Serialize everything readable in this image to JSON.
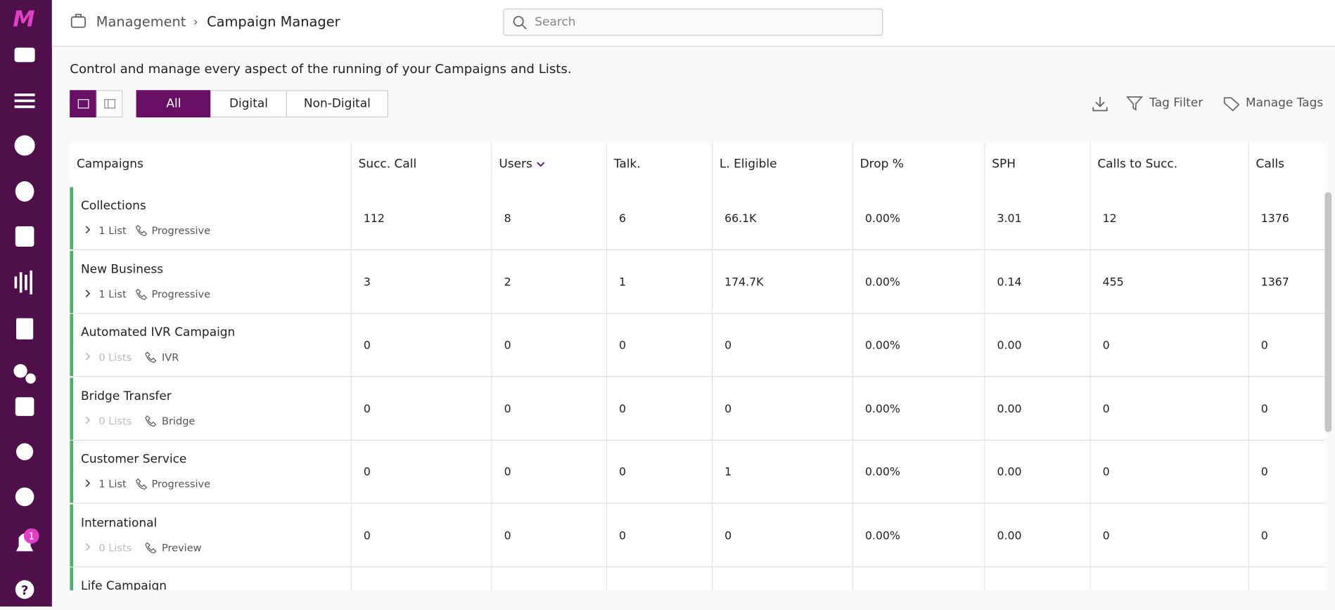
{
  "header": {
    "breadcrumb": [
      "Management",
      "Campaign Manager"
    ],
    "search_placeholder": "Search"
  },
  "sidebar": {
    "notification_count": "1"
  },
  "description": "Control and manage every aspect of the running of your Campaigns and Lists.",
  "tabs": [
    "All",
    "Digital",
    "Non-Digital"
  ],
  "actions": [
    "Tag Filter",
    "Manage Tags"
  ],
  "table": {
    "columns": [
      "Campaigns",
      "Succ. Call",
      "Users",
      "Talk.",
      "L. Eligible",
      "Drop %",
      "SPH",
      "Calls to Succ.",
      "Calls"
    ],
    "rows": [
      {
        "name": "Collections",
        "lists": "1 List",
        "mode": "Progressive",
        "cells": [
          "112",
          "8",
          "6",
          "66.1K",
          "0.00%",
          "3.01",
          "12",
          "1376"
        ]
      },
      {
        "name": "New Business",
        "lists": "1 List",
        "mode": "Progressive",
        "cells": [
          "3",
          "2",
          "1",
          "174.7K",
          "0.00%",
          "0.14",
          "455",
          "1367"
        ]
      },
      {
        "name": "Automated IVR Campaign",
        "lists": "0 Lists",
        "mode": "IVR",
        "cells": [
          "0",
          "0",
          "0",
          "0",
          "0.00%",
          "0.00",
          "0",
          "0"
        ]
      },
      {
        "name": "Bridge Transfer",
        "lists": "0 Lists",
        "mode": "Bridge",
        "cells": [
          "0",
          "0",
          "0",
          "0",
          "0.00%",
          "0.00",
          "0",
          "0"
        ]
      },
      {
        "name": "Customer Service",
        "lists": "1 List",
        "mode": "Progressive",
        "cells": [
          "0",
          "0",
          "0",
          "1",
          "0.00%",
          "0.00",
          "0",
          "0"
        ]
      },
      {
        "name": "International",
        "lists": "0 Lists",
        "mode": "Preview",
        "cells": [
          "0",
          "0",
          "0",
          "0",
          "0.00%",
          "0.00",
          "0",
          "0"
        ]
      },
      {
        "name": "Life Campaign"
      }
    ]
  }
}
